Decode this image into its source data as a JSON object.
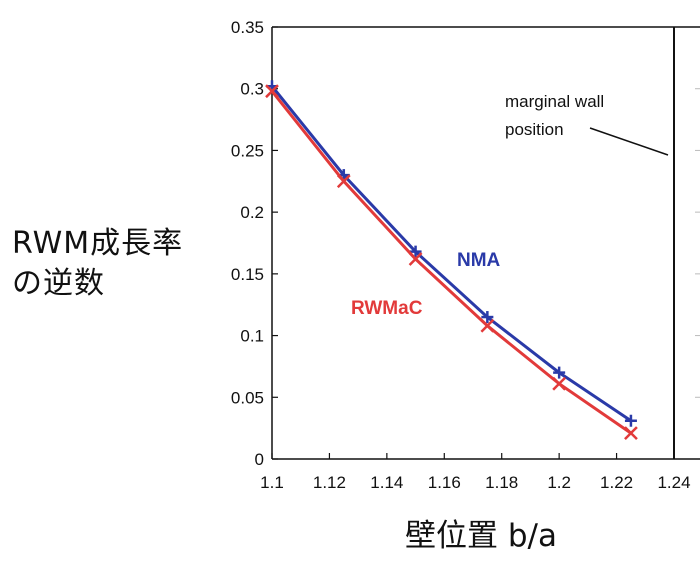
{
  "chart_data": {
    "type": "line",
    "xlabel": "壁位置 b/a",
    "ylabel_lines": [
      "RWM成長率",
      "の逆数"
    ],
    "xlim": [
      1.1,
      1.24
    ],
    "ylim": [
      0,
      0.35
    ],
    "x_ticks": [
      "1.1",
      "1.12",
      "1.14",
      "1.16",
      "1.18",
      "1.2",
      "1.22",
      "1.24"
    ],
    "y_ticks": [
      "0",
      "0.05",
      "0.1",
      "0.15",
      "0.2",
      "0.25",
      "0.3",
      "0.35"
    ],
    "x": [
      1.1,
      1.125,
      1.15,
      1.175,
      1.2,
      1.225
    ],
    "series": [
      {
        "name": "NMA",
        "marker": "plus",
        "color": "#2a3aa8",
        "values": [
          0.302,
          0.23,
          0.168,
          0.115,
          0.07,
          0.031
        ]
      },
      {
        "name": "RWMaC",
        "marker": "x",
        "color": "#e23a3a",
        "values": [
          0.298,
          0.225,
          0.162,
          0.108,
          0.061,
          0.021
        ]
      }
    ],
    "vertical_line_x": 1.24,
    "annotation": "marginal wall position",
    "grid": false
  }
}
